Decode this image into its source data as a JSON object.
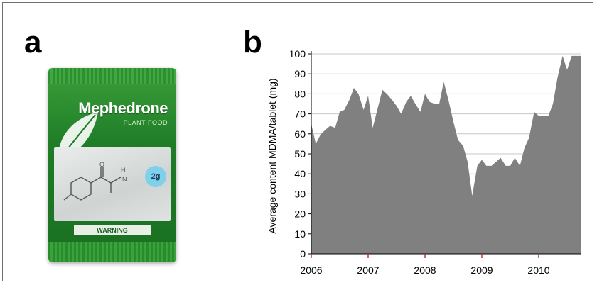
{
  "panels": {
    "a_label": "a",
    "b_label": "b"
  },
  "product": {
    "brand": "Mephedrone",
    "subtitle": "PLANT FOOD",
    "badge": "2g",
    "warning": "WARNING"
  },
  "colors": {
    "area_fill": "#808080",
    "gridline": "#c8c8c8",
    "package_green": "#1e7c27",
    "badge_blue": "#7fd0ea",
    "x_tick_marks": "#c0392b"
  },
  "chart_data": {
    "type": "area",
    "title": "",
    "xlabel": "",
    "ylabel": "Average content MDMA/tablet (mg)",
    "ylim": [
      0,
      100
    ],
    "xlim": [
      2006.0,
      2010.75
    ],
    "y_ticks": [
      0,
      10,
      20,
      30,
      40,
      50,
      60,
      70,
      80,
      90,
      100
    ],
    "x_ticks": [
      2006,
      2007,
      2008,
      2009,
      2010
    ],
    "grid": "horizontal",
    "legend": "none",
    "x": [
      2006.0,
      2006.08,
      2006.17,
      2006.25,
      2006.33,
      2006.42,
      2006.5,
      2006.58,
      2006.67,
      2006.75,
      2006.83,
      2006.92,
      2007.0,
      2007.08,
      2007.17,
      2007.25,
      2007.33,
      2007.42,
      2007.5,
      2007.58,
      2007.67,
      2007.75,
      2007.83,
      2007.92,
      2008.0,
      2008.08,
      2008.17,
      2008.25,
      2008.33,
      2008.42,
      2008.5,
      2008.58,
      2008.67,
      2008.75,
      2008.83,
      2008.92,
      2009.0,
      2009.08,
      2009.17,
      2009.25,
      2009.33,
      2009.42,
      2009.5,
      2009.58,
      2009.67,
      2009.75,
      2009.83,
      2009.92,
      2010.0,
      2010.08,
      2010.17,
      2010.25,
      2010.33,
      2010.42,
      2010.5,
      2010.58,
      2010.67,
      2010.75
    ],
    "values": [
      65,
      55,
      60,
      62,
      64,
      63,
      71,
      72,
      77,
      83,
      80,
      72,
      79,
      63,
      73,
      82,
      80,
      77,
      74,
      70,
      76,
      79,
      75,
      71,
      80,
      76,
      75,
      75,
      86,
      76,
      66,
      57,
      54,
      46,
      29,
      44,
      47,
      44,
      44,
      46,
      48,
      44,
      44,
      48,
      44,
      53,
      58,
      71,
      69,
      69,
      69,
      75,
      88,
      99,
      92,
      99,
      99,
      99
    ]
  }
}
